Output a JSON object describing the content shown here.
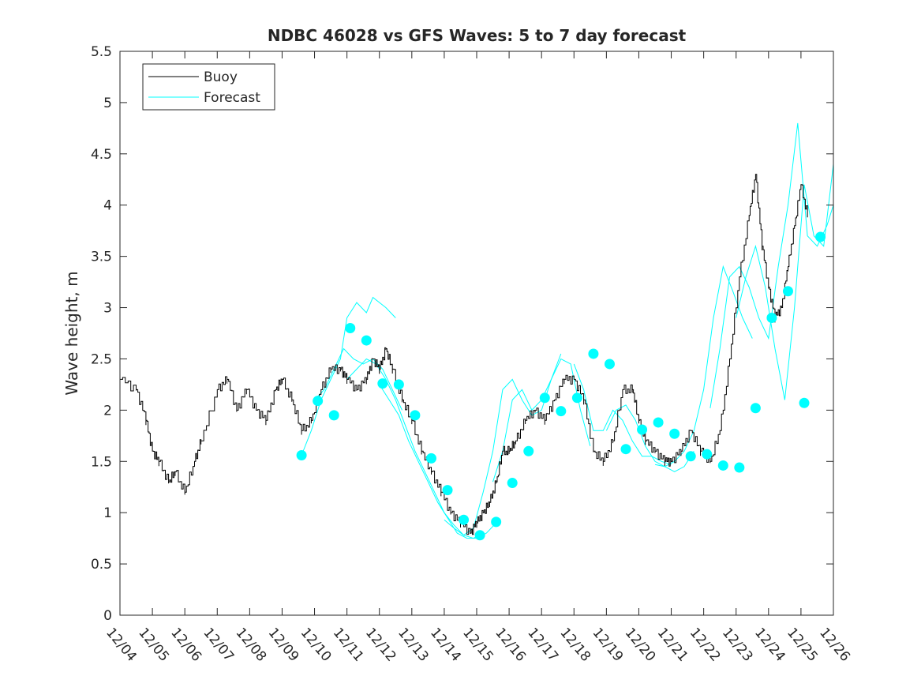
{
  "chart_data": {
    "type": "line",
    "title": "NDBC 46028 vs GFS Waves: 5 to 7 day forecast",
    "xlabel": "",
    "ylabel": "Wave height, m",
    "ylim": [
      0,
      5.5
    ],
    "xlim": [
      0,
      22
    ],
    "yticks": [
      0,
      0.5,
      1,
      1.5,
      2,
      2.5,
      3,
      3.5,
      4,
      4.5,
      5,
      5.5
    ],
    "ytick_labels": [
      "0",
      "0.5",
      "1",
      "1.5",
      "2",
      "2.5",
      "3",
      "3.5",
      "4",
      "4.5",
      "5",
      "5.5"
    ],
    "xtick_labels": [
      "12/04",
      "12/05",
      "12/06",
      "12/07",
      "12/08",
      "12/09",
      "12/10",
      "12/11",
      "12/12",
      "12/13",
      "12/14",
      "12/15",
      "12/16",
      "12/17",
      "12/18",
      "12/19",
      "12/20",
      "12/21",
      "12/22",
      "12/23",
      "12/24",
      "12/25",
      "12/26"
    ],
    "legend": {
      "location": "top-left",
      "entries": [
        "Buoy",
        "Forecast"
      ]
    },
    "colors": {
      "buoy": "#000000",
      "forecast": "#00ffff",
      "axis": "#262626"
    },
    "buoy_series": {
      "name": "Buoy",
      "days": [
        0,
        0.5,
        0.8,
        1.0,
        1.2,
        1.5,
        1.7,
        2.0,
        2.3,
        2.5,
        3.0,
        3.3,
        3.6,
        3.9,
        4.2,
        4.5,
        4.8,
        5.0,
        5.3,
        5.6,
        5.9,
        6.2,
        6.5,
        6.8,
        7.0,
        7.3,
        7.6,
        7.8,
        8.0,
        8.2,
        8.4,
        8.7,
        9.0,
        9.3,
        9.6,
        9.9,
        10.2,
        10.5,
        10.8,
        11.0,
        11.2,
        11.4,
        11.6,
        11.8,
        12.0,
        12.2,
        12.5,
        12.8,
        13.1,
        13.4,
        13.7,
        14.0,
        14.3,
        14.6,
        14.9,
        15.2,
        15.5,
        15.8,
        16.0,
        16.2,
        16.5,
        16.8,
        17.0,
        17.3,
        17.6,
        17.9,
        18.2,
        18.5,
        18.8,
        19.1,
        19.4,
        19.6,
        19.8,
        20.0,
        20.2,
        20.4,
        20.6,
        20.8,
        21.0,
        21.2
      ],
      "values": [
        2.3,
        2.2,
        1.9,
        1.6,
        1.5,
        1.3,
        1.4,
        1.2,
        1.5,
        1.7,
        2.2,
        2.3,
        2.0,
        2.2,
        2.0,
        1.9,
        2.2,
        2.3,
        2.1,
        1.8,
        1.9,
        2.2,
        2.4,
        2.4,
        2.3,
        2.2,
        2.3,
        2.5,
        2.4,
        2.6,
        2.4,
        2.1,
        1.9,
        1.6,
        1.4,
        1.2,
        1.0,
        0.9,
        0.8,
        0.9,
        1.0,
        1.1,
        1.3,
        1.6,
        1.6,
        1.7,
        1.9,
        2.0,
        1.9,
        2.1,
        2.3,
        2.3,
        2.1,
        1.6,
        1.5,
        1.7,
        2.2,
        2.2,
        1.9,
        1.7,
        1.6,
        1.5,
        1.5,
        1.6,
        1.8,
        1.6,
        1.5,
        1.8,
        2.5,
        3.3,
        3.9,
        4.3,
        3.6,
        3.2,
        2.9,
        3.0,
        3.4,
        3.8,
        4.2,
        3.9
      ]
    },
    "forecast_series": [
      {
        "name": "Forecast",
        "days": [
          5.6,
          5.9,
          6.2,
          6.5,
          6.8,
          7.0,
          7.3,
          7.6,
          7.8,
          8.2,
          8.5
        ],
        "values": [
          1.56,
          1.8,
          2.1,
          2.3,
          2.5,
          2.9,
          3.05,
          2.95,
          3.1,
          3.0,
          2.9
        ]
      },
      {
        "name": "Forecast",
        "days": [
          6.0,
          6.3,
          6.6,
          6.9,
          7.2,
          7.5,
          7.8,
          8.1,
          8.4,
          8.7
        ],
        "values": [
          2.1,
          2.2,
          2.4,
          2.6,
          2.5,
          2.45,
          2.5,
          2.4,
          2.2,
          2.0
        ]
      },
      {
        "name": "Forecast",
        "days": [
          7.0,
          7.3,
          7.6,
          7.9,
          8.2,
          8.5,
          8.8,
          9.1,
          9.4,
          9.7,
          10.0,
          10.3,
          10.6,
          10.9,
          11.2
        ],
        "values": [
          2.3,
          2.4,
          2.5,
          2.45,
          2.3,
          2.1,
          1.85,
          1.6,
          1.4,
          1.2,
          1.0,
          0.88,
          0.78,
          0.75,
          0.8
        ]
      },
      {
        "name": "Forecast",
        "days": [
          8.0,
          8.3,
          8.6,
          8.9,
          9.2,
          9.5,
          9.8,
          10.1,
          10.4,
          10.7,
          11.0,
          11.3,
          11.6
        ],
        "values": [
          2.25,
          2.1,
          1.95,
          1.7,
          1.5,
          1.3,
          1.1,
          0.95,
          0.8,
          0.75,
          0.75,
          0.8,
          0.9
        ]
      },
      {
        "name": "Forecast",
        "days": [
          10.0,
          10.3,
          10.6,
          10.9,
          11.2,
          11.5,
          11.8,
          12.1,
          12.4,
          12.7,
          13.0,
          13.3,
          13.6
        ],
        "values": [
          0.93,
          0.85,
          0.78,
          0.85,
          1.2,
          1.6,
          2.2,
          2.3,
          2.1,
          1.95,
          2.0,
          2.3,
          2.55
        ]
      },
      {
        "name": "Forecast",
        "days": [
          11.5,
          11.8,
          12.1,
          12.4,
          12.7,
          13.0,
          13.3,
          13.6,
          13.9,
          14.2,
          14.5
        ],
        "values": [
          1.3,
          1.6,
          2.1,
          2.2,
          2.0,
          2.1,
          2.3,
          2.5,
          2.45,
          2.0,
          1.65
        ]
      },
      {
        "name": "Forecast",
        "days": [
          14.0,
          14.3,
          14.6,
          14.9,
          15.2,
          15.5,
          15.8,
          16.1,
          16.4,
          16.7,
          17.0
        ],
        "values": [
          2.45,
          2.2,
          1.8,
          1.8,
          2.0,
          1.9,
          1.7,
          1.55,
          1.55,
          1.5,
          1.47
        ]
      },
      {
        "name": "Forecast",
        "days": [
          15.0,
          15.3,
          15.6,
          15.9,
          16.2,
          16.5,
          16.8,
          17.1,
          17.4,
          17.7
        ],
        "values": [
          1.8,
          2.0,
          2.05,
          1.9,
          1.65,
          1.5,
          1.45,
          1.4,
          1.45,
          1.6
        ]
      },
      {
        "name": "Forecast",
        "days": [
          16.5,
          16.8,
          17.1,
          17.4,
          17.7,
          18.0,
          18.3,
          18.6,
          18.9,
          19.2,
          19.5
        ],
        "values": [
          1.47,
          1.45,
          1.5,
          1.6,
          1.8,
          2.2,
          2.9,
          3.4,
          3.16,
          2.9,
          2.7
        ]
      },
      {
        "name": "Forecast",
        "days": [
          18.2,
          18.5,
          18.8,
          19.1,
          19.4,
          19.7,
          20.0,
          20.3,
          20.6,
          20.9,
          21.2,
          21.5,
          21.8,
          22.0
        ],
        "values": [
          2.02,
          2.6,
          3.3,
          3.4,
          3.2,
          2.9,
          2.7,
          3.4,
          4.0,
          4.8,
          3.7,
          3.6,
          3.8,
          4.0
        ]
      },
      {
        "name": "Forecast",
        "days": [
          19.0,
          19.3,
          19.6,
          19.9,
          20.2,
          20.5,
          20.8,
          21.1,
          21.4,
          21.7,
          22.0
        ],
        "values": [
          2.9,
          3.3,
          3.6,
          3.2,
          2.6,
          2.1,
          3.0,
          4.2,
          3.7,
          3.6,
          4.4
        ]
      }
    ],
    "forecast_markers": {
      "name": "Forecast",
      "days": [
        5.6,
        6.1,
        6.6,
        7.1,
        7.6,
        8.1,
        8.6,
        9.1,
        9.6,
        10.1,
        10.6,
        11.1,
        11.6,
        12.1,
        12.6,
        13.1,
        13.6,
        14.1,
        14.6,
        15.1,
        15.6,
        16.1,
        16.6,
        17.1,
        17.6,
        18.1,
        18.6,
        19.1,
        19.6,
        20.1,
        20.6
      ],
      "values": [
        1.56,
        2.09,
        1.95,
        2.8,
        2.68,
        2.26,
        2.25,
        1.95,
        1.53,
        1.22,
        0.93,
        0.78,
        0.91,
        1.29,
        1.6,
        2.12,
        1.99,
        2.12,
        2.55,
        2.45,
        1.62,
        1.81,
        1.88,
        1.77,
        1.55,
        1.57,
        1.46,
        1.44,
        2.02,
        2.9,
        3.16
      ]
    },
    "extra_markers": {
      "days": [
        21.1,
        21.6
      ],
      "values": [
        2.07,
        3.69
      ]
    }
  }
}
